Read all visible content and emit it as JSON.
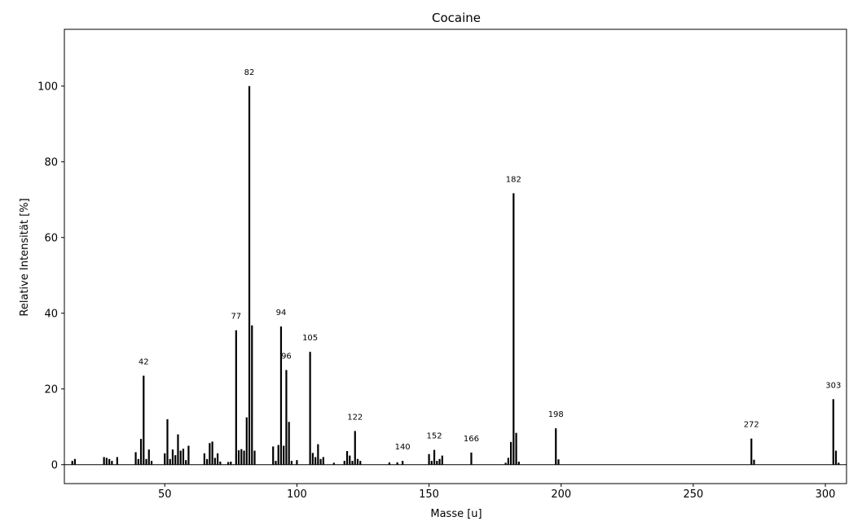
{
  "chart_data": {
    "type": "bar",
    "title": "Cocaine",
    "xlabel": "Masse [u]",
    "ylabel": "Relative Intensität [%]",
    "xlim": [
      12,
      308
    ],
    "ylim": [
      -5,
      115
    ],
    "xticks": [
      50,
      100,
      150,
      200,
      250,
      300
    ],
    "yticks": [
      0,
      20,
      40,
      60,
      80,
      100
    ],
    "grid": false,
    "legend": "none",
    "bar_color": "#000000",
    "peaks": [
      {
        "x": 15,
        "y": 1.0
      },
      {
        "x": 16,
        "y": 1.5
      },
      {
        "x": 27,
        "y": 2.0
      },
      {
        "x": 28,
        "y": 1.8
      },
      {
        "x": 29,
        "y": 1.5
      },
      {
        "x": 30,
        "y": 1.0
      },
      {
        "x": 32,
        "y": 2.0
      },
      {
        "x": 39,
        "y": 3.3
      },
      {
        "x": 40,
        "y": 1.5
      },
      {
        "x": 41,
        "y": 6.8
      },
      {
        "x": 42,
        "y": 23.5
      },
      {
        "x": 43,
        "y": 1.5
      },
      {
        "x": 44,
        "y": 4.0
      },
      {
        "x": 45,
        "y": 1.0
      },
      {
        "x": 50,
        "y": 3.0
      },
      {
        "x": 51,
        "y": 12.0
      },
      {
        "x": 52,
        "y": 1.5
      },
      {
        "x": 53,
        "y": 4.0
      },
      {
        "x": 54,
        "y": 2.5
      },
      {
        "x": 55,
        "y": 8.0
      },
      {
        "x": 56,
        "y": 3.7
      },
      {
        "x": 57,
        "y": 4.2
      },
      {
        "x": 58,
        "y": 1.2
      },
      {
        "x": 59,
        "y": 5.0
      },
      {
        "x": 65,
        "y": 3.0
      },
      {
        "x": 66,
        "y": 1.5
      },
      {
        "x": 67,
        "y": 5.7
      },
      {
        "x": 68,
        "y": 6.1
      },
      {
        "x": 69,
        "y": 1.8
      },
      {
        "x": 70,
        "y": 3.0
      },
      {
        "x": 71,
        "y": 0.8
      },
      {
        "x": 74,
        "y": 0.7
      },
      {
        "x": 75,
        "y": 0.8
      },
      {
        "x": 77,
        "y": 35.5
      },
      {
        "x": 78,
        "y": 3.8
      },
      {
        "x": 79,
        "y": 4.1
      },
      {
        "x": 80,
        "y": 3.7
      },
      {
        "x": 81,
        "y": 12.5
      },
      {
        "x": 82,
        "y": 100.0
      },
      {
        "x": 83,
        "y": 36.8
      },
      {
        "x": 84,
        "y": 3.7
      },
      {
        "x": 91,
        "y": 4.8
      },
      {
        "x": 92,
        "y": 1.0
      },
      {
        "x": 93,
        "y": 5.2
      },
      {
        "x": 94,
        "y": 36.5
      },
      {
        "x": 95,
        "y": 5.0
      },
      {
        "x": 96,
        "y": 25.0
      },
      {
        "x": 97,
        "y": 11.3
      },
      {
        "x": 98,
        "y": 1.0
      },
      {
        "x": 100,
        "y": 1.2
      },
      {
        "x": 105,
        "y": 29.8
      },
      {
        "x": 106,
        "y": 3.1
      },
      {
        "x": 107,
        "y": 2.0
      },
      {
        "x": 108,
        "y": 5.4
      },
      {
        "x": 109,
        "y": 1.5
      },
      {
        "x": 110,
        "y": 2.0
      },
      {
        "x": 114,
        "y": 0.5
      },
      {
        "x": 118,
        "y": 1.0
      },
      {
        "x": 119,
        "y": 3.6
      },
      {
        "x": 120,
        "y": 2.4
      },
      {
        "x": 121,
        "y": 1.0
      },
      {
        "x": 122,
        "y": 8.9
      },
      {
        "x": 123,
        "y": 1.5
      },
      {
        "x": 124,
        "y": 1.0
      },
      {
        "x": 135,
        "y": 0.6
      },
      {
        "x": 138,
        "y": 0.6
      },
      {
        "x": 140,
        "y": 1.0
      },
      {
        "x": 150,
        "y": 2.8
      },
      {
        "x": 151,
        "y": 1.0
      },
      {
        "x": 152,
        "y": 3.9
      },
      {
        "x": 153,
        "y": 1.0
      },
      {
        "x": 154,
        "y": 1.5
      },
      {
        "x": 155,
        "y": 2.4
      },
      {
        "x": 166,
        "y": 3.2
      },
      {
        "x": 179,
        "y": 0.5
      },
      {
        "x": 180,
        "y": 1.8
      },
      {
        "x": 181,
        "y": 6.0
      },
      {
        "x": 182,
        "y": 71.7
      },
      {
        "x": 183,
        "y": 8.4
      },
      {
        "x": 184,
        "y": 0.8
      },
      {
        "x": 198,
        "y": 9.6
      },
      {
        "x": 199,
        "y": 1.4
      },
      {
        "x": 272,
        "y": 6.9
      },
      {
        "x": 273,
        "y": 1.3
      },
      {
        "x": 303,
        "y": 17.3
      },
      {
        "x": 304,
        "y": 3.7
      },
      {
        "x": 305,
        "y": 0.5
      }
    ],
    "peak_labels": [
      {
        "x": 42,
        "y": 23.5,
        "label": "42"
      },
      {
        "x": 77,
        "y": 35.5,
        "label": "77"
      },
      {
        "x": 82,
        "y": 100.0,
        "label": "82"
      },
      {
        "x": 94,
        "y": 36.5,
        "label": "94"
      },
      {
        "x": 96,
        "y": 25.0,
        "label": "96"
      },
      {
        "x": 105,
        "y": 29.8,
        "label": "105"
      },
      {
        "x": 122,
        "y": 8.9,
        "label": "122"
      },
      {
        "x": 140,
        "y": 1.0,
        "label": "140"
      },
      {
        "x": 152,
        "y": 3.9,
        "label": "152"
      },
      {
        "x": 166,
        "y": 3.2,
        "label": "166"
      },
      {
        "x": 182,
        "y": 71.7,
        "label": "182"
      },
      {
        "x": 198,
        "y": 9.6,
        "label": "198"
      },
      {
        "x": 272,
        "y": 6.9,
        "label": "272"
      },
      {
        "x": 303,
        "y": 17.3,
        "label": "303"
      }
    ]
  }
}
